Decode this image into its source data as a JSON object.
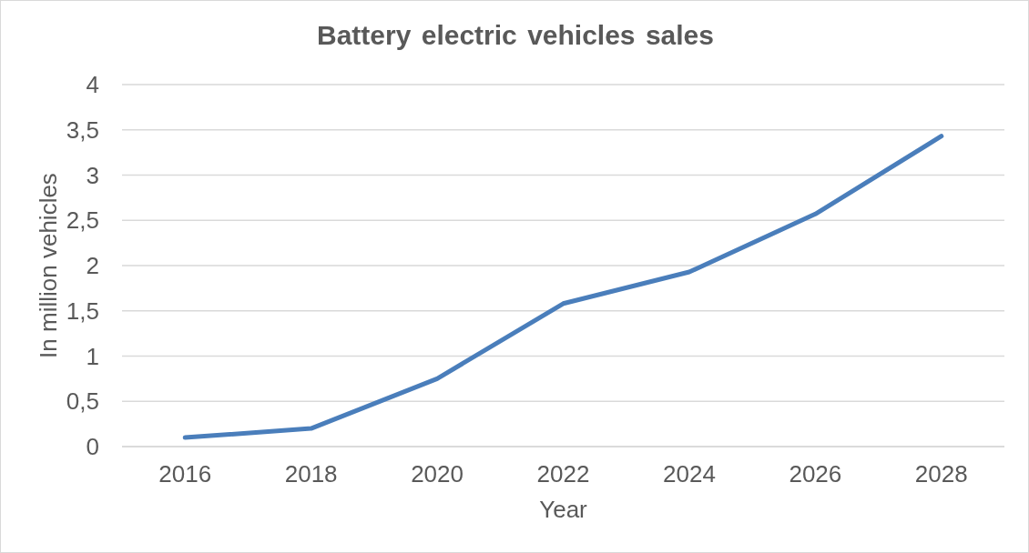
{
  "chart_data": {
    "type": "line",
    "title": "Battery electric vehicles sales",
    "xlabel": "Year",
    "ylabel": "In million vehicles",
    "categories": [
      "2016",
      "2018",
      "2020",
      "2022",
      "2024",
      "2026",
      "2028"
    ],
    "series": [
      {
        "color": "#4a7ebb",
        "values": [
          0.1,
          0.2,
          0.75,
          1.58,
          1.93,
          2.57,
          3.43
        ]
      }
    ],
    "ylim": [
      0,
      4
    ],
    "yticks": [
      0,
      {
        "value": 0.5,
        "label": "0,5"
      },
      1,
      {
        "value": 1.5,
        "label": "1,5"
      },
      2,
      {
        "value": 2.5,
        "label": "2,5"
      },
      3,
      {
        "value": 3.5,
        "label": "3,5"
      },
      4
    ],
    "grid": "y"
  }
}
